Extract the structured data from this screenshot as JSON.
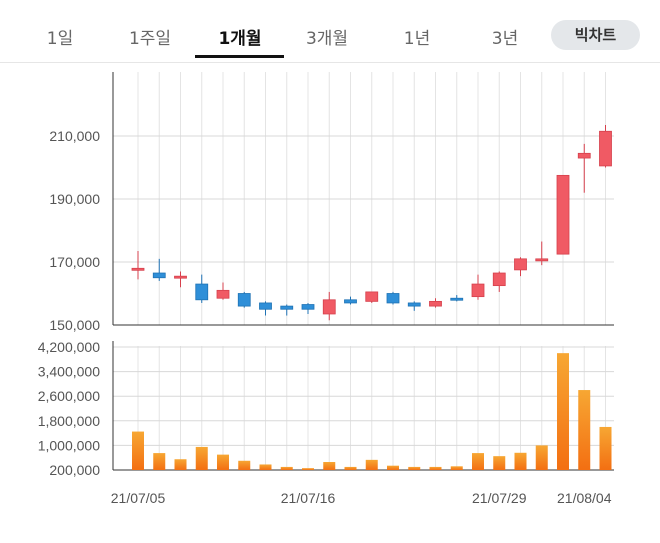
{
  "tabs": [
    {
      "label": "1일",
      "active": false
    },
    {
      "label": "1주일",
      "active": false
    },
    {
      "label": "1개월",
      "active": true
    },
    {
      "label": "3개월",
      "active": false
    },
    {
      "label": "1년",
      "active": false
    },
    {
      "label": "3년",
      "active": false
    }
  ],
  "bigchart_label": "빅차트",
  "chart_data": [
    {
      "type": "candlestick",
      "title": "",
      "ylim": [
        150000,
        230000
      ],
      "yticks": [
        150000,
        170000,
        190000,
        210000
      ],
      "ytick_labels": [
        "150,000",
        "170,000",
        "190,000",
        "210,000"
      ],
      "up_color": "#f05a64",
      "down_color": "#2f8fd8",
      "candles": [
        {
          "open": 167500,
          "high": 173500,
          "low": 164500,
          "close": 168000
        },
        {
          "open": 166500,
          "high": 171000,
          "low": 164000,
          "close": 165000
        },
        {
          "open": 165500,
          "high": 167000,
          "low": 162000,
          "close": 165500
        },
        {
          "open": 163000,
          "high": 166000,
          "low": 157000,
          "close": 158000
        },
        {
          "open": 158500,
          "high": 163500,
          "low": 158000,
          "close": 161000
        },
        {
          "open": 160000,
          "high": 160500,
          "low": 155500,
          "close": 156000
        },
        {
          "open": 157000,
          "high": 157500,
          "low": 153000,
          "close": 155000
        },
        {
          "open": 156000,
          "high": 156500,
          "low": 153000,
          "close": 155000
        },
        {
          "open": 156500,
          "high": 157000,
          "low": 153500,
          "close": 155000
        },
        {
          "open": 153500,
          "high": 160500,
          "low": 151500,
          "close": 158000
        },
        {
          "open": 158000,
          "high": 159000,
          "low": 156500,
          "close": 157000
        },
        {
          "open": 157500,
          "high": 160500,
          "low": 157000,
          "close": 160500
        },
        {
          "open": 160000,
          "high": 160500,
          "low": 156500,
          "close": 157000
        },
        {
          "open": 157000,
          "high": 157500,
          "low": 154500,
          "close": 156000
        },
        {
          "open": 156000,
          "high": 158500,
          "low": 155500,
          "close": 157500
        },
        {
          "open": 158500,
          "high": 159500,
          "low": 157500,
          "close": 158000
        },
        {
          "open": 159000,
          "high": 166000,
          "low": 158000,
          "close": 163000
        },
        {
          "open": 162500,
          "high": 167000,
          "low": 160500,
          "close": 166500
        },
        {
          "open": 167500,
          "high": 171500,
          "low": 165500,
          "close": 171000
        },
        {
          "open": 171000,
          "high": 176500,
          "low": 169000,
          "close": 171000
        },
        {
          "open": 172500,
          "high": 197500,
          "low": 172500,
          "close": 197500
        },
        {
          "open": 203000,
          "high": 207500,
          "low": 192000,
          "close": 204500
        },
        {
          "open": 200500,
          "high": 213500,
          "low": 200000,
          "close": 211500
        }
      ]
    },
    {
      "type": "bar",
      "ylim": [
        200000,
        4200000
      ],
      "yticks": [
        200000,
        1000000,
        1800000,
        2600000,
        3400000,
        4200000
      ],
      "ytick_labels": [
        "200,000",
        "1,000,000",
        "1,800,000",
        "2,600,000",
        "3,400,000",
        "4,200,000"
      ],
      "color": "#f5a623",
      "values": [
        1450000,
        750000,
        550000,
        950000,
        700000,
        500000,
        380000,
        300000,
        260000,
        460000,
        300000,
        530000,
        340000,
        300000,
        300000,
        320000,
        750000,
        650000,
        760000,
        1000000,
        4000000,
        2800000,
        1600000
      ],
      "date_labels": [
        {
          "index": 0,
          "text": "21/07/05"
        },
        {
          "index": 8,
          "text": "21/07/16"
        },
        {
          "index": 17,
          "text": "21/07/29"
        },
        {
          "index": 21,
          "text": "21/08/04"
        }
      ]
    }
  ]
}
